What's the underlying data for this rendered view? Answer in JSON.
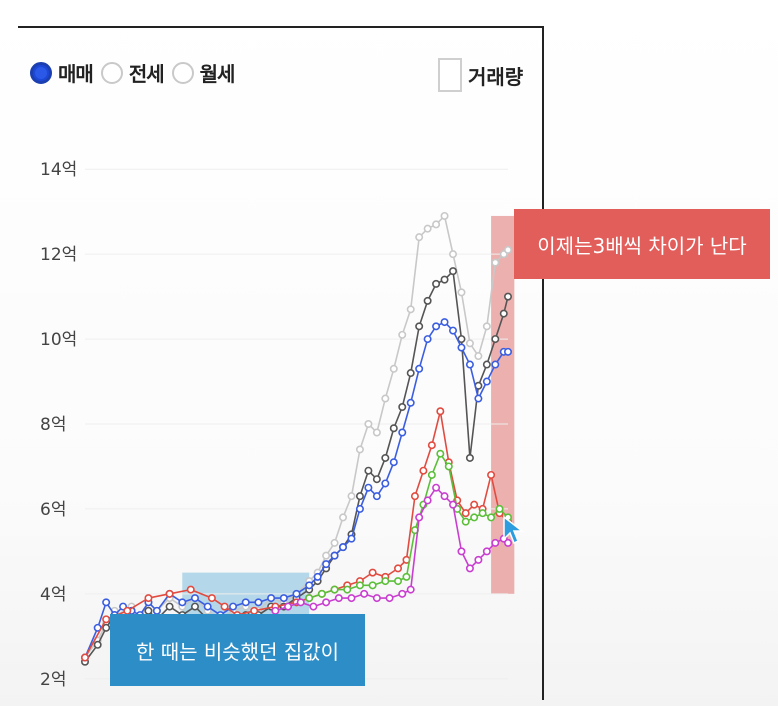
{
  "tabs": [
    {
      "label": "매매",
      "selected": true
    },
    {
      "label": "전세",
      "selected": false
    },
    {
      "label": "월세",
      "selected": false
    }
  ],
  "volume_toggle": {
    "label": "거래량",
    "checked": false
  },
  "annotations": {
    "left_text": "한 때는 비슷했던 집값이",
    "right_text": "이제는3배씩 차이가 난다",
    "left_color": "#2d8ec7",
    "right_color": "#e15e5b"
  },
  "chart_data": {
    "type": "line",
    "ylim": [
      1.5,
      14.5
    ],
    "xlim": [
      0,
      100
    ],
    "ytick_values": [
      2,
      4,
      6,
      8,
      10,
      12,
      14
    ],
    "yticks": [
      "2억",
      "4억",
      "6억",
      "8억",
      "10억",
      "12억",
      "14억"
    ],
    "highlights": [
      {
        "x0": 23,
        "x1": 53,
        "y0": 2.6,
        "y1": 4.5,
        "color": "#a8d1e6"
      },
      {
        "x0": 96,
        "x1": 101.5,
        "y0": 4.0,
        "y1": 12.9,
        "color": "#e9a3a1"
      }
    ],
    "series": [
      {
        "color": "#c8c8c8",
        "x": [
          0,
          3,
          5,
          7,
          9,
          11,
          13,
          15,
          17,
          20,
          23,
          26,
          29,
          32,
          35,
          38,
          41,
          44,
          47,
          50,
          53,
          55,
          57,
          59,
          61,
          63,
          65,
          67,
          69,
          71,
          73,
          75,
          77,
          79,
          81,
          83,
          85,
          87,
          89,
          91,
          93,
          95,
          97,
          99,
          100
        ],
        "y": [
          2.5,
          2.9,
          3.3,
          3.6,
          3.5,
          3.7,
          3.4,
          3.8,
          3.6,
          3.9,
          3.7,
          3.9,
          3.6,
          3.4,
          3.6,
          3.7,
          3.6,
          3.9,
          3.8,
          4.0,
          4.3,
          4.5,
          4.9,
          5.2,
          5.8,
          6.3,
          7.4,
          8.0,
          7.8,
          8.6,
          9.3,
          10.1,
          10.7,
          12.4,
          12.6,
          12.7,
          12.9,
          12.0,
          11.1,
          9.9,
          9.6,
          10.3,
          11.8,
          12.0,
          12.1
        ]
      },
      {
        "color": "#555555",
        "x": [
          0,
          3,
          5,
          7,
          9,
          11,
          13,
          15,
          17,
          20,
          23,
          26,
          29,
          32,
          35,
          38,
          41,
          44,
          47,
          50,
          53,
          55,
          57,
          59,
          61,
          63,
          65,
          67,
          69,
          71,
          73,
          75,
          77,
          79,
          81,
          83,
          85,
          87,
          89,
          91,
          93,
          95,
          97,
          99,
          100
        ],
        "y": [
          2.4,
          2.8,
          3.2,
          3.5,
          3.3,
          3.6,
          3.2,
          3.6,
          3.4,
          3.7,
          3.5,
          3.7,
          3.4,
          3.3,
          3.4,
          3.5,
          3.5,
          3.7,
          3.7,
          3.9,
          4.1,
          4.3,
          4.6,
          4.9,
          5.1,
          5.4,
          6.3,
          6.9,
          6.7,
          7.2,
          7.9,
          8.4,
          9.2,
          10.3,
          10.9,
          11.3,
          11.4,
          11.6,
          10.0,
          7.2,
          8.9,
          9.4,
          10.0,
          10.6,
          11.0
        ]
      },
      {
        "color": "#3b5ee0",
        "x": [
          0,
          3,
          5,
          7,
          9,
          11,
          13,
          15,
          17,
          20,
          23,
          26,
          29,
          32,
          35,
          38,
          41,
          44,
          47,
          50,
          53,
          55,
          57,
          59,
          61,
          63,
          65,
          67,
          69,
          71,
          73,
          75,
          77,
          79,
          81,
          83,
          85,
          87,
          89,
          91,
          93,
          95,
          97,
          99,
          100
        ],
        "y": [
          2.5,
          3.2,
          3.8,
          3.5,
          3.7,
          3.6,
          3.5,
          3.8,
          3.6,
          4.0,
          3.8,
          3.9,
          3.7,
          3.5,
          3.7,
          3.8,
          3.8,
          3.9,
          3.9,
          4.0,
          4.2,
          4.4,
          4.7,
          4.9,
          5.1,
          5.3,
          6.0,
          6.5,
          6.3,
          6.6,
          7.1,
          7.8,
          8.5,
          9.3,
          10.0,
          10.3,
          10.4,
          10.2,
          9.8,
          9.4,
          8.6,
          9.0,
          9.4,
          9.7,
          9.7
        ]
      },
      {
        "color": "#e14b40",
        "x": [
          0,
          5,
          10,
          15,
          20,
          25,
          30,
          33,
          36,
          40,
          45,
          50,
          53,
          56,
          59,
          62,
          65,
          68,
          71,
          74,
          76,
          78,
          80,
          82,
          84,
          86,
          88,
          90,
          92,
          94,
          96,
          98,
          100
        ],
        "y": [
          2.5,
          3.4,
          3.6,
          3.9,
          4.0,
          4.1,
          3.9,
          3.7,
          3.5,
          3.6,
          3.7,
          3.8,
          3.9,
          4.0,
          4.1,
          4.2,
          4.3,
          4.5,
          4.4,
          4.6,
          4.8,
          6.3,
          6.9,
          7.5,
          8.3,
          7.1,
          6.2,
          5.9,
          6.1,
          6.0,
          6.8,
          5.9,
          5.7
        ]
      },
      {
        "color": "#5cbf3a",
        "x": [
          53,
          56,
          59,
          62,
          65,
          68,
          71,
          74,
          76,
          78,
          80,
          82,
          84,
          86,
          88,
          90,
          92,
          94,
          96,
          98,
          100
        ],
        "y": [
          3.9,
          4.0,
          4.1,
          4.1,
          4.2,
          4.2,
          4.3,
          4.3,
          4.4,
          5.5,
          6.1,
          6.8,
          7.3,
          7.0,
          6.0,
          5.7,
          5.8,
          5.9,
          5.8,
          6.0,
          5.8
        ]
      },
      {
        "color": "#c93ed0",
        "x": [
          45,
          48,
          51,
          54,
          57,
          60,
          63,
          66,
          69,
          72,
          75,
          77,
          79,
          81,
          83,
          85,
          87,
          89,
          91,
          93,
          95,
          97,
          99,
          100
        ],
        "y": [
          3.6,
          3.7,
          3.8,
          3.7,
          3.8,
          3.9,
          3.9,
          4.0,
          3.9,
          3.9,
          4.0,
          4.1,
          5.8,
          6.2,
          6.5,
          6.3,
          6.1,
          5.0,
          4.6,
          4.8,
          5.0,
          5.2,
          5.3,
          5.2
        ]
      }
    ]
  }
}
